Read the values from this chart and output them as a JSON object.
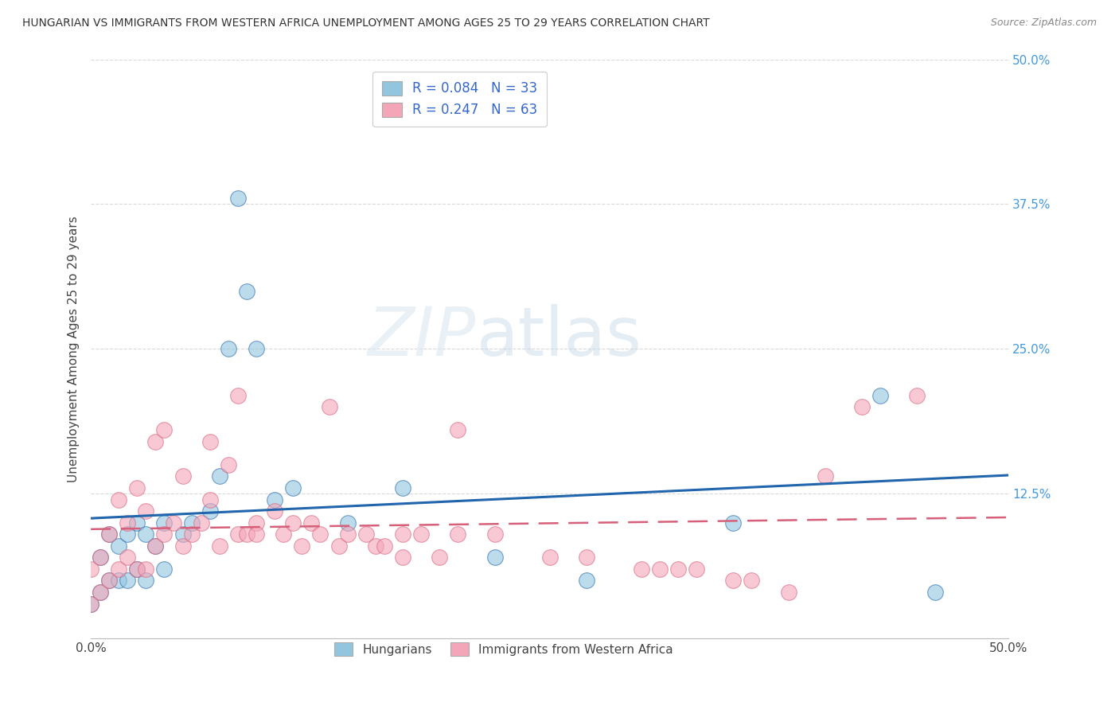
{
  "title": "HUNGARIAN VS IMMIGRANTS FROM WESTERN AFRICA UNEMPLOYMENT AMONG AGES 25 TO 29 YEARS CORRELATION CHART",
  "source": "Source: ZipAtlas.com",
  "ylabel": "Unemployment Among Ages 25 to 29 years",
  "xlim": [
    0.0,
    0.5
  ],
  "ylim": [
    0.0,
    0.5
  ],
  "blue_color": "#92c5de",
  "pink_color": "#f4a6b8",
  "trendline_blue": "#2166ac",
  "trendline_pink": "#d6607a",
  "legend_R_blue": "0.084",
  "legend_N_blue": "33",
  "legend_R_pink": "0.247",
  "legend_N_pink": "63",
  "blue_points_x": [
    0.0,
    0.005,
    0.005,
    0.01,
    0.01,
    0.015,
    0.015,
    0.02,
    0.02,
    0.025,
    0.025,
    0.03,
    0.03,
    0.035,
    0.04,
    0.04,
    0.05,
    0.055,
    0.065,
    0.07,
    0.075,
    0.08,
    0.085,
    0.09,
    0.1,
    0.11,
    0.14,
    0.17,
    0.22,
    0.27,
    0.35,
    0.43,
    0.46
  ],
  "blue_points_y": [
    0.03,
    0.04,
    0.07,
    0.05,
    0.09,
    0.05,
    0.08,
    0.05,
    0.09,
    0.06,
    0.1,
    0.05,
    0.09,
    0.08,
    0.06,
    0.1,
    0.09,
    0.1,
    0.11,
    0.14,
    0.25,
    0.38,
    0.3,
    0.25,
    0.12,
    0.13,
    0.1,
    0.13,
    0.07,
    0.05,
    0.1,
    0.21,
    0.04
  ],
  "pink_points_x": [
    0.0,
    0.0,
    0.005,
    0.005,
    0.01,
    0.01,
    0.015,
    0.015,
    0.02,
    0.02,
    0.025,
    0.025,
    0.03,
    0.03,
    0.035,
    0.035,
    0.04,
    0.04,
    0.045,
    0.05,
    0.05,
    0.055,
    0.06,
    0.065,
    0.065,
    0.07,
    0.075,
    0.08,
    0.08,
    0.085,
    0.09,
    0.09,
    0.1,
    0.105,
    0.11,
    0.115,
    0.12,
    0.125,
    0.13,
    0.135,
    0.14,
    0.15,
    0.155,
    0.16,
    0.17,
    0.17,
    0.18,
    0.19,
    0.2,
    0.2,
    0.22,
    0.25,
    0.27,
    0.3,
    0.31,
    0.32,
    0.33,
    0.35,
    0.36,
    0.38,
    0.4,
    0.42,
    0.45
  ],
  "pink_points_y": [
    0.03,
    0.06,
    0.04,
    0.07,
    0.05,
    0.09,
    0.06,
    0.12,
    0.07,
    0.1,
    0.06,
    0.13,
    0.06,
    0.11,
    0.08,
    0.17,
    0.09,
    0.18,
    0.1,
    0.08,
    0.14,
    0.09,
    0.1,
    0.12,
    0.17,
    0.08,
    0.15,
    0.09,
    0.21,
    0.09,
    0.1,
    0.09,
    0.11,
    0.09,
    0.1,
    0.08,
    0.1,
    0.09,
    0.2,
    0.08,
    0.09,
    0.09,
    0.08,
    0.08,
    0.07,
    0.09,
    0.09,
    0.07,
    0.18,
    0.09,
    0.09,
    0.07,
    0.07,
    0.06,
    0.06,
    0.06,
    0.06,
    0.05,
    0.05,
    0.04,
    0.14,
    0.2,
    0.21
  ],
  "watermark_zip": "ZIP",
  "watermark_atlas": "atlas",
  "background_color": "#ffffff",
  "grid_color": "#d0d0d0"
}
